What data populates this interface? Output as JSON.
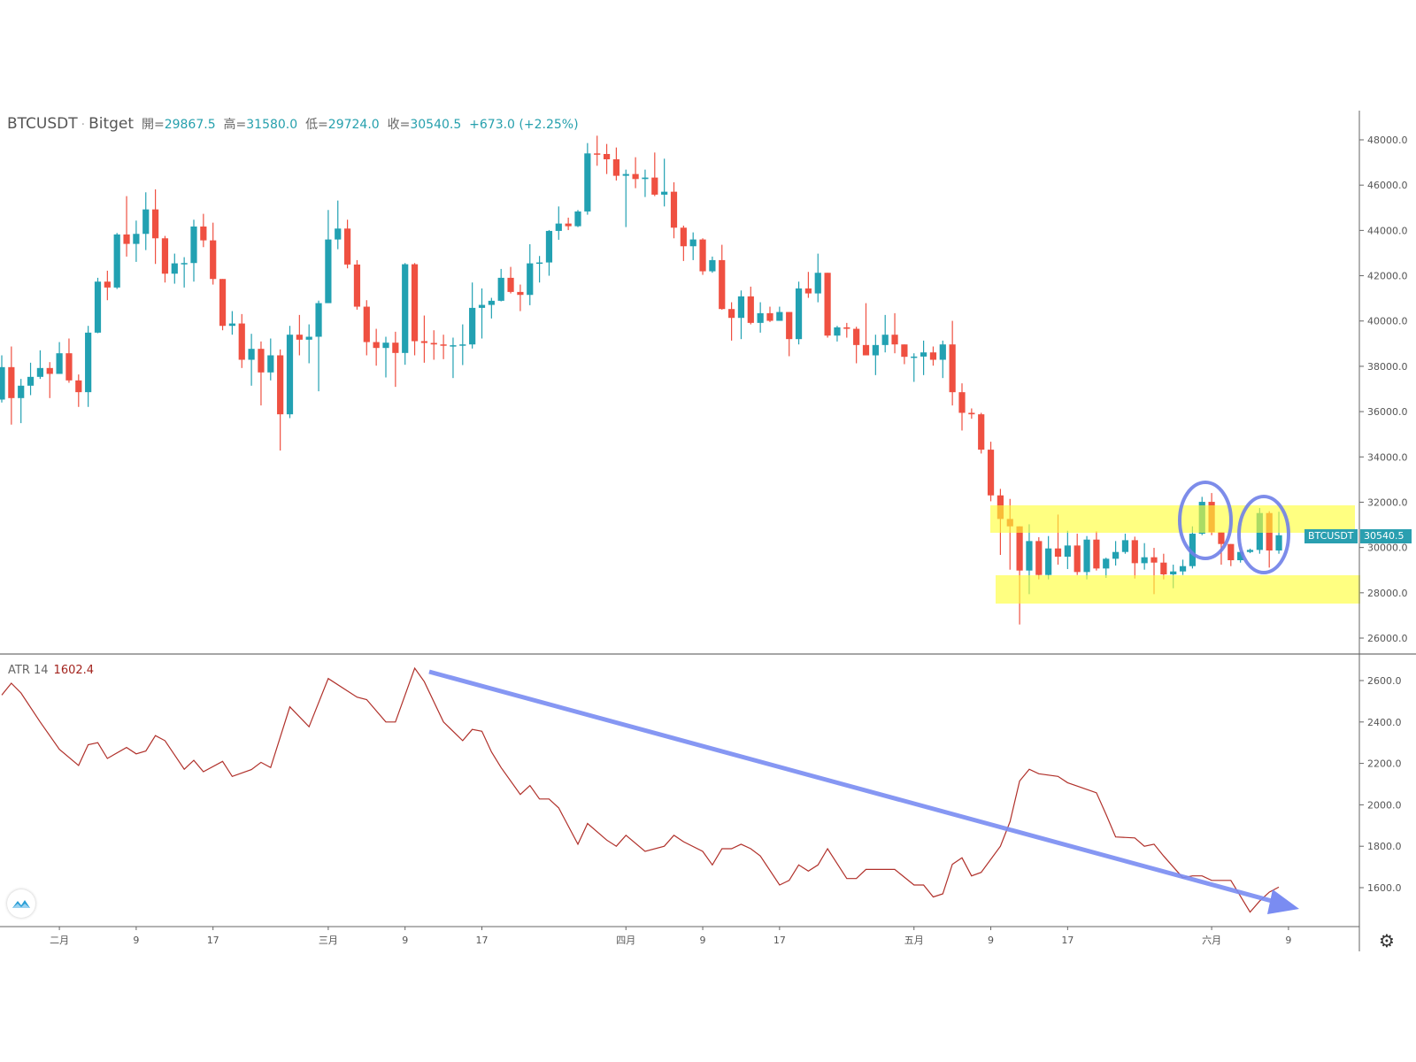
{
  "header": {
    "symbol": "BTCUSDT",
    "exchange": "Bitget",
    "open_label": "開=",
    "open": "29867.5",
    "high_label": "高=",
    "high": "31580.0",
    "low_label": "低=",
    "low": "29724.0",
    "close_label": "收=",
    "close": "30540.5",
    "change": "+673.0 (+2.25%)"
  },
  "price_tag": {
    "symbol": "BTCUSDT",
    "value": "30540.5"
  },
  "indicator": {
    "name": "ATR 14",
    "value": "1602.4"
  },
  "colors": {
    "up": "#22a1b2",
    "down": "#ef5041",
    "atr": "#b0302a",
    "arrow": "#7a8cf2",
    "band": "#ffff33"
  },
  "chart_data": [
    {
      "type": "candlestick",
      "title": "BTCUSDT · Bitget",
      "price_ticks": [
        "48000.0",
        "46000.0",
        "44000.0",
        "42000.0",
        "40000.0",
        "38000.0",
        "36000.0",
        "34000.0",
        "32000.0",
        "30000.0",
        "28000.0",
        "26000.0"
      ],
      "price_tick_values": [
        48000,
        46000,
        44000,
        42000,
        40000,
        38000,
        36000,
        34000,
        32000,
        30000,
        28000,
        26000
      ],
      "ylim": [
        26000,
        48000
      ],
      "x_ticks": [
        {
          "label": "二月",
          "index": 7
        },
        {
          "label": "9",
          "index": 15
        },
        {
          "label": "17",
          "index": 23
        },
        {
          "label": "三月",
          "index": 35
        },
        {
          "label": "9",
          "index": 43
        },
        {
          "label": "17",
          "index": 51
        },
        {
          "label": "四月",
          "index": 66
        },
        {
          "label": "9",
          "index": 74
        },
        {
          "label": "17",
          "index": 82
        },
        {
          "label": "五月",
          "index": 96
        },
        {
          "label": "9",
          "index": 104
        },
        {
          "label": "17",
          "index": 112
        },
        {
          "label": "六月",
          "index": 127
        },
        {
          "label": "9",
          "index": 135
        }
      ],
      "ohlc": [
        [
          36532,
          38485,
          36402,
          37964
        ],
        [
          37964,
          38875,
          35426,
          36597
        ],
        [
          36597,
          37443,
          35491,
          37144
        ],
        [
          37144,
          38159,
          36727,
          37534
        ],
        [
          37534,
          38706,
          37443,
          37925
        ],
        [
          37925,
          38185,
          36597,
          37665
        ],
        [
          37665,
          39070,
          37665,
          38576
        ],
        [
          38576,
          39227,
          37274,
          37378
        ],
        [
          37378,
          37639,
          36207,
          36858
        ],
        [
          36858,
          39786,
          36207,
          39487
        ],
        [
          39487,
          41908,
          39461,
          41739
        ],
        [
          41739,
          42221,
          40919,
          41479
        ],
        [
          41479,
          43887,
          41414,
          43822
        ],
        [
          43822,
          45514,
          42845,
          43405
        ],
        [
          43405,
          44434,
          42611,
          43848
        ],
        [
          43848,
          45683,
          43132,
          44928
        ],
        [
          44928,
          45813,
          42520,
          43652
        ],
        [
          43652,
          43757,
          41700,
          42090
        ],
        [
          42090,
          42976,
          41648,
          42546
        ],
        [
          42546,
          42819,
          41479,
          42560
        ],
        [
          42560,
          44473,
          41739,
          44173
        ],
        [
          44173,
          44733,
          43262,
          43561
        ],
        [
          43561,
          44342,
          41609,
          41856
        ],
        [
          41856,
          41856,
          39591,
          39786
        ],
        [
          39786,
          40437,
          39396,
          39890
        ],
        [
          39890,
          40307,
          37925,
          38289
        ],
        [
          38289,
          39435,
          37144,
          38771
        ],
        [
          38771,
          39097,
          36272,
          37730
        ],
        [
          37730,
          39227,
          37378,
          38485
        ],
        [
          38485,
          38745,
          34280,
          35881
        ],
        [
          35881,
          39786,
          35712,
          39396
        ],
        [
          39396,
          40268,
          38485,
          39175
        ],
        [
          39175,
          39851,
          38134,
          39305
        ],
        [
          39305,
          40900,
          36897,
          40789
        ],
        [
          40789,
          44902,
          40789,
          43600
        ],
        [
          43600,
          45319,
          43171,
          44082
        ],
        [
          44082,
          44473,
          42325,
          42494
        ],
        [
          42494,
          42689,
          40502,
          40633
        ],
        [
          40633,
          40919,
          38485,
          39070
        ],
        [
          39070,
          39656,
          38029,
          38810
        ],
        [
          38810,
          39305,
          37508,
          39044
        ],
        [
          39044,
          39526,
          37092,
          38589
        ],
        [
          38589,
          42559,
          38068,
          42507
        ],
        [
          42507,
          42559,
          38485,
          39110
        ],
        [
          39110,
          40242,
          38159,
          39032
        ],
        [
          39032,
          39591,
          38289,
          38966
        ],
        [
          38966,
          39396,
          38315,
          38914
        ],
        [
          38914,
          39266,
          37482,
          38930
        ],
        [
          38930,
          39851,
          38055,
          38966
        ],
        [
          38966,
          41700,
          38784,
          40580
        ],
        [
          40580,
          41440,
          39227,
          40711
        ],
        [
          40711,
          41023,
          40112,
          40893
        ],
        [
          40893,
          42299,
          40867,
          41908
        ],
        [
          41908,
          42390,
          41218,
          41283
        ],
        [
          41283,
          41609,
          40437,
          41153
        ],
        [
          41153,
          43392,
          40698,
          42546
        ],
        [
          42546,
          42871,
          41700,
          42585
        ],
        [
          42585,
          44017,
          41999,
          43978
        ],
        [
          43978,
          45058,
          43587,
          44303
        ],
        [
          44303,
          44564,
          44017,
          44186
        ],
        [
          44186,
          44902,
          44147,
          44837
        ],
        [
          44837,
          47857,
          44694,
          47401
        ],
        [
          47401,
          48182,
          46855,
          47375
        ],
        [
          47375,
          47818,
          46490,
          47141
        ],
        [
          47141,
          47662,
          46204,
          46412
        ],
        [
          46412,
          46685,
          44147,
          46490
        ],
        [
          46490,
          47232,
          45865,
          46269
        ],
        [
          46269,
          46685,
          45475,
          46334
        ],
        [
          46334,
          47440,
          45514,
          45579
        ],
        [
          45579,
          47167,
          45058,
          45709
        ],
        [
          45709,
          46126,
          43652,
          44121
        ],
        [
          44121,
          44212,
          42650,
          43301
        ],
        [
          43301,
          43913,
          42689,
          43600
        ],
        [
          43600,
          43652,
          42038,
          42195
        ],
        [
          42195,
          42845,
          42130,
          42689
        ],
        [
          42689,
          43366,
          40500,
          40529
        ],
        [
          40529,
          40828,
          39135,
          40138
        ],
        [
          40138,
          41348,
          39201,
          41088
        ],
        [
          41088,
          41518,
          39851,
          39917
        ],
        [
          39917,
          40828,
          39487,
          40346
        ],
        [
          40346,
          40633,
          39956,
          40008
        ],
        [
          40008,
          40633,
          40008,
          40398
        ],
        [
          40398,
          40398,
          38446,
          39201
        ],
        [
          39201,
          41739,
          38966,
          41439
        ],
        [
          41439,
          42168,
          41023,
          41218
        ],
        [
          41218,
          42975,
          40827,
          42129
        ],
        [
          42129,
          42129,
          39265,
          39356
        ],
        [
          39356,
          39786,
          39096,
          39721
        ],
        [
          39721,
          39916,
          39265,
          39656
        ],
        [
          39656,
          39747,
          38133,
          38940
        ],
        [
          38940,
          40788,
          38484,
          38484
        ],
        [
          38484,
          39395,
          37612,
          38940
        ],
        [
          38940,
          40268,
          38614,
          39395
        ],
        [
          39395,
          40346,
          38575,
          38966
        ],
        [
          38966,
          38966,
          38094,
          38419
        ],
        [
          38419,
          38575,
          37313,
          38430
        ],
        [
          38430,
          39135,
          37612,
          38614
        ],
        [
          38614,
          38875,
          38029,
          38289
        ],
        [
          38289,
          39135,
          37482,
          38966
        ],
        [
          38966,
          40007,
          36271,
          36857
        ],
        [
          36857,
          37248,
          35165,
          35946
        ],
        [
          35946,
          36141,
          35685,
          35881
        ],
        [
          35881,
          35946,
          34150,
          34319
        ],
        [
          34319,
          34670,
          32041,
          32301
        ],
        [
          32301,
          32588,
          29672,
          31260
        ],
        [
          31260,
          32145,
          29021,
          30934
        ],
        [
          30934,
          30934,
          26600,
          28982
        ],
        [
          28982,
          31025,
          27940,
          30284
        ],
        [
          30284,
          30453,
          28592,
          28787
        ],
        [
          28787,
          30505,
          28592,
          29958
        ],
        [
          29958,
          31455,
          29242,
          29594
        ],
        [
          29594,
          30739,
          29047,
          30088
        ],
        [
          30088,
          30609,
          28787,
          28917
        ],
        [
          28917,
          30505,
          28592,
          30349
        ],
        [
          30349,
          30713,
          28982,
          29073
        ],
        [
          29073,
          29550,
          28656,
          29503
        ],
        [
          29503,
          30284,
          29203,
          29802
        ],
        [
          29802,
          30609,
          29724,
          30323
        ],
        [
          30323,
          30479,
          28630,
          29307
        ],
        [
          29307,
          30193,
          29021,
          29568
        ],
        [
          29568,
          29984,
          27940,
          29333
        ],
        [
          29333,
          29724,
          28592,
          28813
        ],
        [
          28813,
          29242,
          28201,
          28943
        ],
        [
          28943,
          29463,
          28787,
          29177
        ],
        [
          29177,
          30934,
          29073,
          30609
        ],
        [
          30609,
          32236,
          30544,
          32015
        ],
        [
          32015,
          32405,
          30544,
          30674
        ],
        [
          30674,
          30674,
          29242,
          30154
        ],
        [
          30154,
          30154,
          29177,
          29438
        ],
        [
          29438,
          29850,
          29333,
          29802
        ],
        [
          29802,
          29950,
          29750,
          29893
        ],
        [
          29893,
          31742,
          29725,
          31521
        ],
        [
          31521,
          31600,
          29113,
          29867.5
        ],
        [
          29867.5,
          31580,
          29724,
          30540.5
        ]
      ]
    },
    {
      "type": "line",
      "title": "ATR 14",
      "ylim": [
        1400,
        2700
      ],
      "y_ticks": [
        "2600.0",
        "2400.0",
        "2200.0",
        "2000.0",
        "1800.0",
        "1600.0"
      ],
      "y_tick_values": [
        2600,
        2400,
        2200,
        2000,
        1800,
        1600
      ],
      "points": [
        [
          1,
          2530
        ],
        [
          2,
          2587
        ],
        [
          3,
          2540
        ],
        [
          5,
          2400
        ],
        [
          7,
          2268
        ],
        [
          9,
          2190
        ],
        [
          10,
          2290
        ],
        [
          11,
          2300
        ],
        [
          12,
          2224
        ],
        [
          14,
          2277
        ],
        [
          15,
          2246
        ],
        [
          16,
          2260
        ],
        [
          17,
          2334
        ],
        [
          18,
          2310
        ],
        [
          20,
          2172
        ],
        [
          21,
          2215
        ],
        [
          22,
          2160
        ],
        [
          24,
          2210
        ],
        [
          25,
          2137
        ],
        [
          27,
          2170
        ],
        [
          28,
          2205
        ],
        [
          29,
          2180
        ],
        [
          31,
          2473
        ],
        [
          33,
          2377
        ],
        [
          35,
          2610
        ],
        [
          38,
          2520
        ],
        [
          39,
          2508
        ],
        [
          41,
          2400
        ],
        [
          42,
          2400
        ],
        [
          44,
          2660
        ],
        [
          45,
          2595
        ],
        [
          47,
          2400
        ],
        [
          49,
          2310
        ],
        [
          50,
          2364
        ],
        [
          51,
          2355
        ],
        [
          52,
          2255
        ],
        [
          53,
          2180
        ],
        [
          55,
          2050
        ],
        [
          56,
          2093
        ],
        [
          57,
          2028
        ],
        [
          58,
          2028
        ],
        [
          59,
          1985
        ],
        [
          61,
          1810
        ],
        [
          62,
          1910
        ],
        [
          64,
          1830
        ],
        [
          65,
          1800
        ],
        [
          66,
          1853
        ],
        [
          68,
          1775
        ],
        [
          70,
          1800
        ],
        [
          71,
          1853
        ],
        [
          72,
          1822
        ],
        [
          74,
          1775
        ],
        [
          75,
          1710
        ],
        [
          76,
          1788
        ],
        [
          77,
          1788
        ],
        [
          78,
          1810
        ],
        [
          79,
          1788
        ],
        [
          80,
          1753
        ],
        [
          82,
          1613
        ],
        [
          83,
          1635
        ],
        [
          84,
          1710
        ],
        [
          85,
          1680
        ],
        [
          86,
          1710
        ],
        [
          87,
          1788
        ],
        [
          89,
          1644
        ],
        [
          90,
          1644
        ],
        [
          91,
          1688
        ],
        [
          94,
          1688
        ],
        [
          96,
          1613
        ],
        [
          97,
          1613
        ],
        [
          98,
          1555
        ],
        [
          99,
          1570
        ],
        [
          100,
          1713
        ],
        [
          101,
          1744
        ],
        [
          102,
          1657
        ],
        [
          103,
          1674
        ],
        [
          105,
          1800
        ],
        [
          106,
          1919
        ],
        [
          107,
          2115
        ],
        [
          108,
          2172
        ],
        [
          109,
          2150
        ],
        [
          111,
          2137
        ],
        [
          112,
          2107
        ],
        [
          115,
          2058
        ],
        [
          116,
          1954
        ],
        [
          117,
          1845
        ],
        [
          119,
          1840
        ],
        [
          120,
          1800
        ],
        [
          121,
          1810
        ],
        [
          122,
          1753
        ],
        [
          124,
          1648
        ],
        [
          125,
          1657
        ],
        [
          126,
          1657
        ],
        [
          127,
          1635
        ],
        [
          129,
          1635
        ],
        [
          131,
          1482
        ],
        [
          132,
          1535
        ],
        [
          133,
          1578
        ],
        [
          134,
          1602.4
        ]
      ]
    }
  ]
}
